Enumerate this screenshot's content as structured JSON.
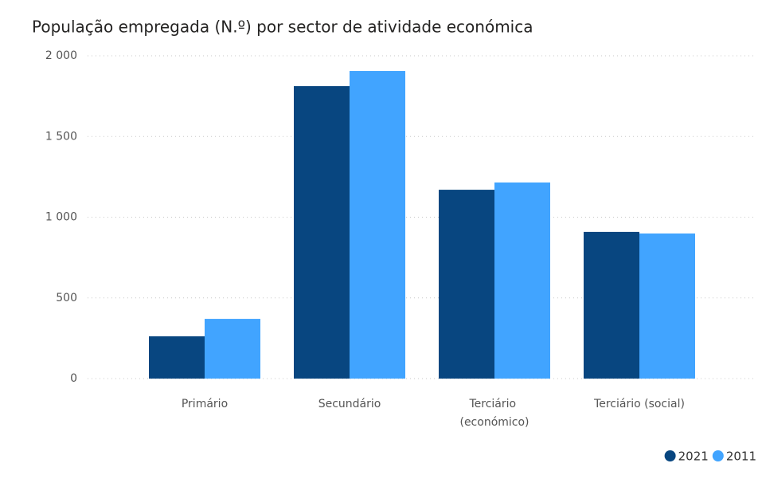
{
  "chart_data": {
    "type": "bar",
    "title": "População empregada (N.º) por sector de atividade económica",
    "categories": [
      "Primário",
      "Secundário",
      "Terciário (económico)",
      "Terciário (social)"
    ],
    "series": [
      {
        "name": "2021",
        "color": "#084680",
        "values": [
          262,
          1812,
          1170,
          909
        ]
      },
      {
        "name": "2011",
        "color": "#41a4ff",
        "values": [
          370,
          1906,
          1215,
          899
        ]
      }
    ],
    "ylim": [
      0,
      2000
    ],
    "yticks": [
      0,
      500,
      {
        "value": 1000,
        "label": "1 000"
      },
      {
        "value": 1500,
        "label": "1 500"
      },
      {
        "value": 2000,
        "label": "2 000"
      }
    ],
    "grid": true,
    "legend": "bottom-right"
  }
}
